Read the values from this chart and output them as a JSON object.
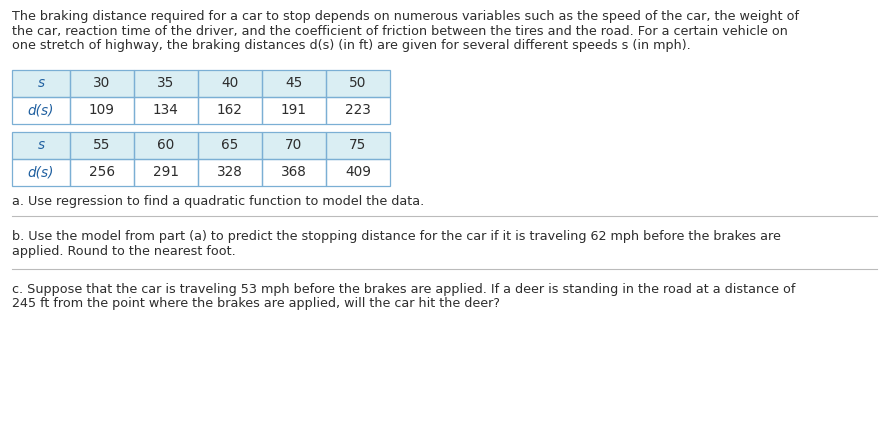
{
  "intro_text_lines": [
    "The braking distance required for a car to stop depends on numerous variables such as the speed of the car, the weight of",
    "the car, reaction time of the driver, and the coefficient of friction between the tires and the road. For a certain vehicle on",
    "one stretch of highway, the braking distances d(s) (in ft) are given for several different speeds s (in mph)."
  ],
  "table1_headers": [
    "s",
    "30",
    "35",
    "40",
    "45",
    "50"
  ],
  "table1_row2": [
    "d(s)",
    "109",
    "134",
    "162",
    "191",
    "223"
  ],
  "table2_headers": [
    "s",
    "55",
    "60",
    "65",
    "70",
    "75"
  ],
  "table2_row2": [
    "d(s)",
    "256",
    "291",
    "328",
    "368",
    "409"
  ],
  "question_a": "a. Use regression to find a quadratic function to model the data.",
  "question_b_lines": [
    "b. Use the model from part (a) to predict the stopping distance for the car if it is traveling 62 mph before the brakes are",
    "applied. Round to the nearest foot."
  ],
  "question_c_lines": [
    "c. Suppose that the car is traveling 53 mph before the brakes are applied. If a deer is standing in the road at a distance of",
    "245 ft from the point where the brakes are applied, will the car hit the deer?"
  ],
  "header_bg": "#daeef3",
  "table_border": "#7bafd4",
  "text_color": "#2d2d2d",
  "header_text_color": "#2060a0",
  "bg_color": "#ffffff",
  "font_size_intro": 9.2,
  "font_size_table": 9.8,
  "font_size_questions": 9.2,
  "sep_color": "#bbbbbb"
}
